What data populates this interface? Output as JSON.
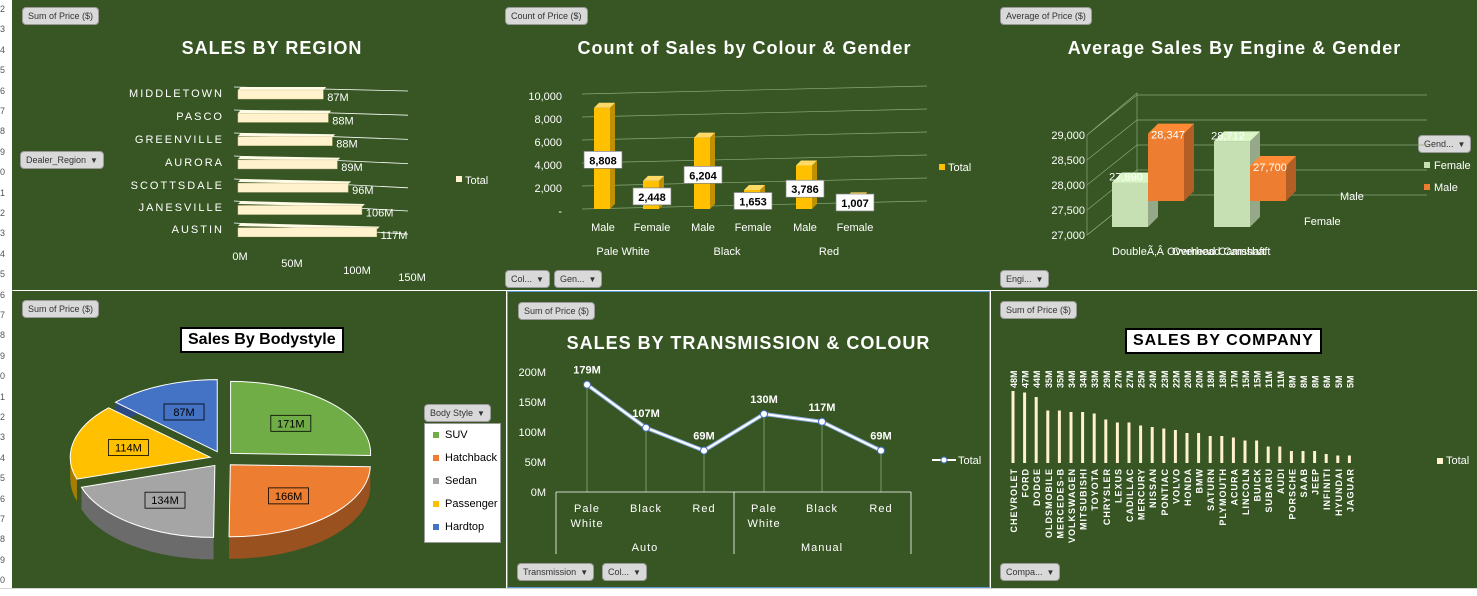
{
  "row_numbers": [
    "2",
    "3",
    "4",
    "5",
    "6",
    "7",
    "8",
    "9",
    "0",
    "1",
    "2",
    "3",
    "4",
    "5",
    "6",
    "7",
    "8",
    "9",
    "0",
    "1",
    "2",
    "3",
    "4",
    "5",
    "6",
    "7",
    "8",
    "9",
    "0"
  ],
  "colors": {
    "panel_bg": "#375623",
    "cream": "#fff2cc",
    "gold": "#ffc000",
    "orange": "#ed7d31",
    "pale_green": "#c6e0b4",
    "green": "#70ad47",
    "gray": "#a5a5a5",
    "blue": "#4472c4",
    "line": "#dae3f3"
  },
  "region": {
    "pill": "Sum of Price ($)",
    "title": "SALES BY REGION",
    "filter": "Dealer_Region",
    "legend": "Total",
    "chart_data": {
      "type": "bar",
      "orientation": "horizontal",
      "categories": [
        "MIDDLETOWN",
        "PASCO",
        "GREENVILLE",
        "AURORA",
        "SCOTTSDALE",
        "JANESVILLE",
        "AUSTIN"
      ],
      "values": [
        87,
        88,
        88,
        89,
        96,
        106,
        117
      ],
      "labels": [
        "87M",
        "88M",
        "88M",
        "89M",
        "96M",
        "106M",
        "117M"
      ],
      "ticks": [
        "0M",
        "50M",
        "100M",
        "150M"
      ],
      "tick_values": [
        0,
        50,
        100,
        150
      ],
      "xlim": [
        0,
        150
      ],
      "legend": "Total"
    }
  },
  "colour_gender": {
    "pill": "Count of Price ($)",
    "title": "Count of Sales by Colour & Gender",
    "legend": "Total",
    "filters": [
      "Col...",
      "Gen..."
    ],
    "chart_data": {
      "type": "bar",
      "groups": [
        "Pale White",
        "Black",
        "Red"
      ],
      "categories": [
        "Male",
        "Female",
        "Male",
        "Female",
        "Male",
        "Female"
      ],
      "values": [
        8808,
        2448,
        6204,
        1653,
        3786,
        1007
      ],
      "labels": [
        "8,808",
        "2,448",
        "6,204",
        "1,653",
        "3,786",
        "1,007"
      ],
      "ticks": [
        "-",
        "2,000",
        "4,000",
        "6,000",
        "8,000",
        "10,000"
      ],
      "tick_values": [
        0,
        2000,
        4000,
        6000,
        8000,
        10000
      ],
      "ylim": [
        0,
        10000
      ],
      "legend": "Total"
    }
  },
  "engine_gender": {
    "pill": "Average of Price ($)",
    "title": "Average Sales By Engine & Gender",
    "filter": "Engi...",
    "legend_header": "Gend...",
    "chart_data": {
      "type": "bar",
      "categories": [
        "DoubleÃ‚Â Overhead Camshaft",
        "Overhead Camshaft"
      ],
      "series": [
        {
          "name": "Female",
          "values": [
            27890,
            28712
          ],
          "labels": [
            "27,890",
            "28,712"
          ]
        },
        {
          "name": "Male",
          "values": [
            28347,
            27700
          ],
          "labels": [
            "28,347",
            "27,700"
          ]
        }
      ],
      "ticks": [
        "27,000",
        "27,500",
        "28,000",
        "28,500",
        "29,000"
      ],
      "tick_values": [
        27000,
        27500,
        28000,
        28500,
        29000
      ],
      "ylim": [
        27000,
        29000
      ],
      "depth_labels": [
        "Male",
        "Female"
      ],
      "legend": [
        "Female",
        "Male"
      ]
    }
  },
  "bodystyle": {
    "pill": "Sum of Price ($)",
    "title": "Sales By Bodystyle",
    "legend_header": "Body Style",
    "chart_data": {
      "type": "pie",
      "categories": [
        "SUV",
        "Hatchback",
        "Sedan",
        "Passenger",
        "Hardtop"
      ],
      "values": [
        171,
        166,
        134,
        114,
        87
      ],
      "labels": [
        "171M",
        "166M",
        "134M",
        "114M",
        "87M"
      ],
      "colors": [
        "#70ad47",
        "#ed7d31",
        "#a5a5a5",
        "#ffc000",
        "#4472c4"
      ]
    }
  },
  "transmission": {
    "pill": "Sum of Price ($)",
    "title": "SALES BY TRANSMISSION & COLOUR",
    "filters": [
      "Transmission",
      "Col..."
    ],
    "legend": "Total",
    "chart_data": {
      "type": "line",
      "groups": [
        "Auto",
        "Manual"
      ],
      "categories": [
        [
          "Pale",
          "White"
        ],
        [
          "Black"
        ],
        [
          "Red"
        ],
        [
          "Pale",
          "White"
        ],
        [
          "Black"
        ],
        [
          "Red"
        ]
      ],
      "values": [
        179,
        107,
        69,
        130,
        117,
        69
      ],
      "labels": [
        "179M",
        "107M",
        "69M",
        "130M",
        "117M",
        "69M"
      ],
      "ticks": [
        "0M",
        "50M",
        "100M",
        "150M",
        "200M"
      ],
      "tick_values": [
        0,
        50,
        100,
        150,
        200
      ],
      "ylim": [
        0,
        200
      ],
      "legend": "Total"
    }
  },
  "company": {
    "pill": "Sum of Price ($)",
    "title": "SALES BY COMPANY",
    "filter": "Compa...",
    "legend": "Total",
    "chart_data": {
      "type": "bar",
      "categories": [
        "CHEVROLET",
        "FORD",
        "DODGE",
        "OLDSMOBILE",
        "MERCEDES-B",
        "VOLKSWAGEN",
        "MITSUBISHI",
        "TOYOTA",
        "CHRYSLER",
        "LEXUS",
        "CADILLAC",
        "MERCURY",
        "NISSAN",
        "PONTIAC",
        "VOLVO",
        "HONDA",
        "BMW",
        "SATURN",
        "PLYMOUTH",
        "ACURA",
        "LINCOLN",
        "BUICK",
        "SUBARU",
        "AUDI",
        "PORSCHE",
        "SAAB",
        "JEEP",
        "INFINITI",
        "HYUNDAI",
        "JAGUAR"
      ],
      "values": [
        48,
        47,
        44,
        35,
        35,
        34,
        34,
        33,
        29,
        27,
        27,
        25,
        24,
        23,
        22,
        20,
        20,
        18,
        18,
        17,
        15,
        15,
        11,
        11,
        8,
        8,
        8,
        6,
        5,
        5
      ],
      "labels": [
        "48M",
        "47M",
        "44M",
        "35M",
        "35M",
        "34M",
        "34M",
        "33M",
        "29M",
        "27M",
        "27M",
        "25M",
        "24M",
        "23M",
        "22M",
        "20M",
        "20M",
        "18M",
        "18M",
        "17M",
        "15M",
        "15M",
        "11M",
        "11M",
        "8M",
        "8M",
        "8M",
        "6M",
        "5M",
        "5M"
      ],
      "legend": "Total"
    }
  }
}
